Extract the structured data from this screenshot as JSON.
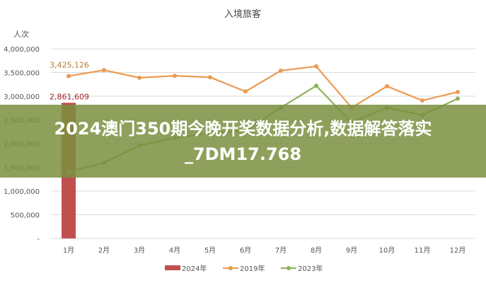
{
  "chart_data": {
    "type": "bar+line",
    "title": "入境旅客",
    "ylabel": "人次",
    "ylim": [
      0,
      4000000
    ],
    "yticks": [
      "-",
      "500,000",
      "1,000,000",
      "1,500,000",
      "2,000,000",
      "2,500,000",
      "3,000,000",
      "3,500,000",
      "4,000,000"
    ],
    "categories": [
      "1月",
      "2月",
      "3月",
      "4月",
      "5月",
      "6月",
      "7月",
      "8月",
      "9月",
      "10月",
      "11月",
      "12月"
    ],
    "grid": true,
    "legend": "bottom",
    "series": [
      {
        "name": "2024年",
        "type": "bar",
        "color": "#c0504d",
        "values": [
          2861609,
          null,
          null,
          null,
          null,
          null,
          null,
          null,
          null,
          null,
          null,
          null
        ],
        "label": "2,861,609",
        "label_color": "#a0262a"
      },
      {
        "name": "2019年",
        "type": "line",
        "color": "#eb9a52",
        "values": [
          3425126,
          3550000,
          3390000,
          3430000,
          3400000,
          3100000,
          3540000,
          3630000,
          2760000,
          3210000,
          2910000,
          3090000
        ],
        "label": "3,425,126",
        "label_color": "#b47d2e"
      },
      {
        "name": "2023年",
        "type": "line",
        "color": "#8db35a",
        "values": [
          1400000,
          1600000,
          1960000,
          2120000,
          2220000,
          2270000,
          2760000,
          3220000,
          2450000,
          2760000,
          2600000,
          2950000
        ]
      }
    ]
  },
  "overlay": {
    "text": "2024澳门350期今晚开奖数据分析,数据解答落实_7DM17.768"
  }
}
